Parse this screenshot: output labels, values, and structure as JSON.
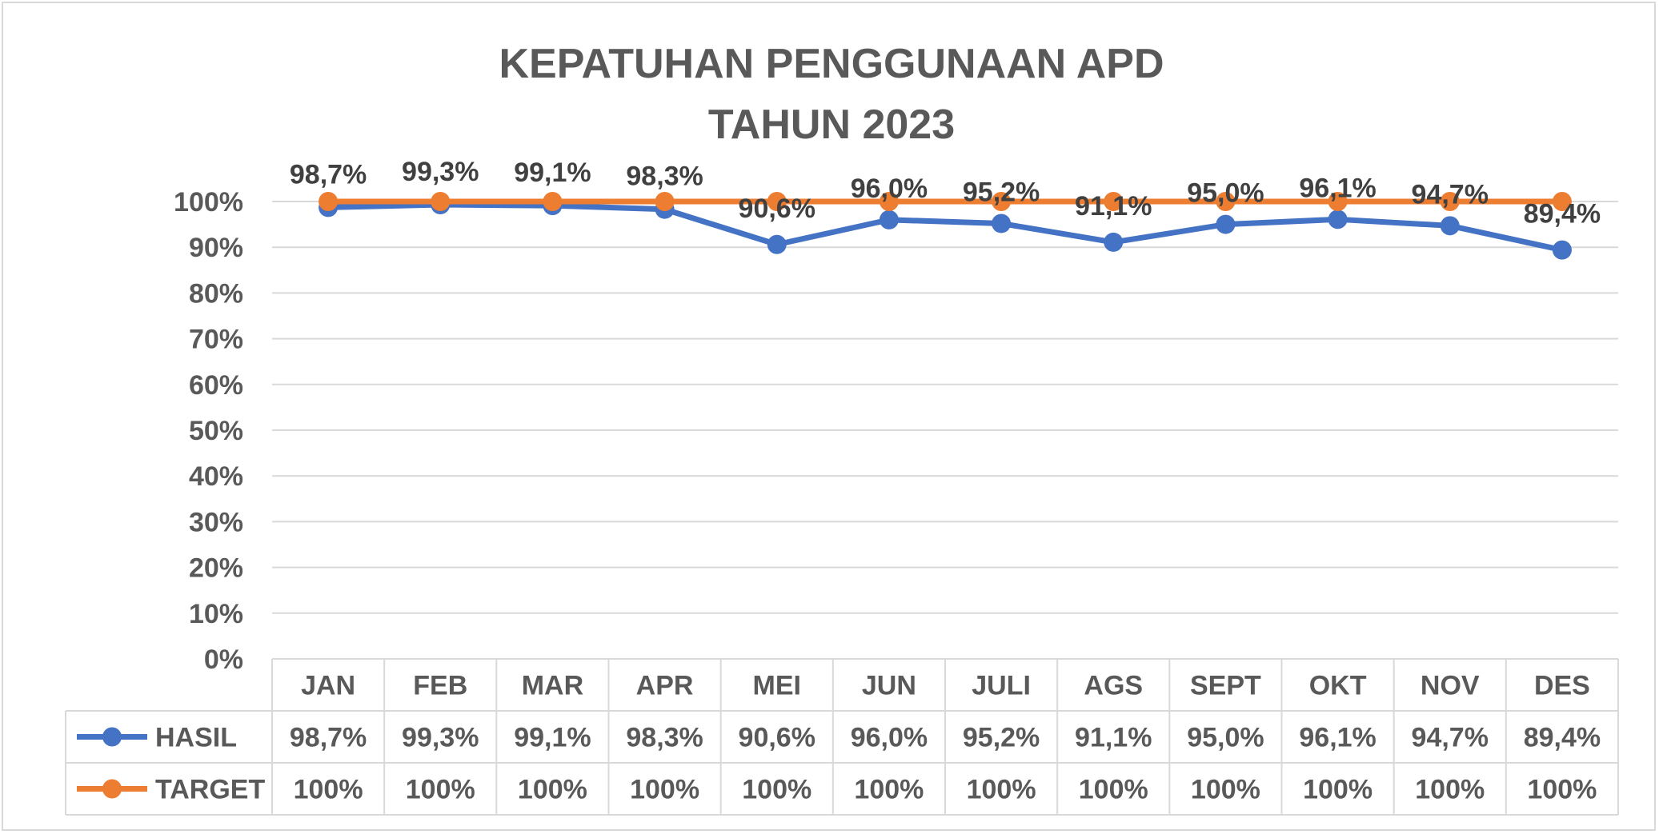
{
  "chart_data": {
    "type": "line",
    "title_lines": [
      "KEPATUHAN PENGGUNAAN APD",
      "TAHUN 2023"
    ],
    "categories": [
      "JAN",
      "FEB",
      "MAR",
      "APR",
      "MEI",
      "JUN",
      "JULI",
      "AGS",
      "SEPT",
      "OKT",
      "NOV",
      "DES"
    ],
    "series": [
      {
        "name": "HASIL",
        "color": "#4472C4",
        "values": [
          98.7,
          99.3,
          99.1,
          98.3,
          90.6,
          96.0,
          95.2,
          91.1,
          95.0,
          96.1,
          94.7,
          89.4
        ],
        "labels": [
          "98,7%",
          "99,3%",
          "99,1%",
          "98,3%",
          "90,6%",
          "96,0%",
          "95,2%",
          "91,1%",
          "95,0%",
          "96,1%",
          "94,7%",
          "89,4%"
        ]
      },
      {
        "name": "TARGET",
        "color": "#ED7D31",
        "values": [
          100,
          100,
          100,
          100,
          100,
          100,
          100,
          100,
          100,
          100,
          100,
          100
        ],
        "labels": [
          "100%",
          "100%",
          "100%",
          "100%",
          "100%",
          "100%",
          "100%",
          "100%",
          "100%",
          "100%",
          "100%",
          "100%"
        ]
      }
    ],
    "y_ticks": [
      "0%",
      "10%",
      "20%",
      "30%",
      "40%",
      "50%",
      "60%",
      "70%",
      "80%",
      "90%",
      "100%"
    ],
    "ylim": [
      0,
      100
    ],
    "grid": true,
    "data_table": true
  }
}
